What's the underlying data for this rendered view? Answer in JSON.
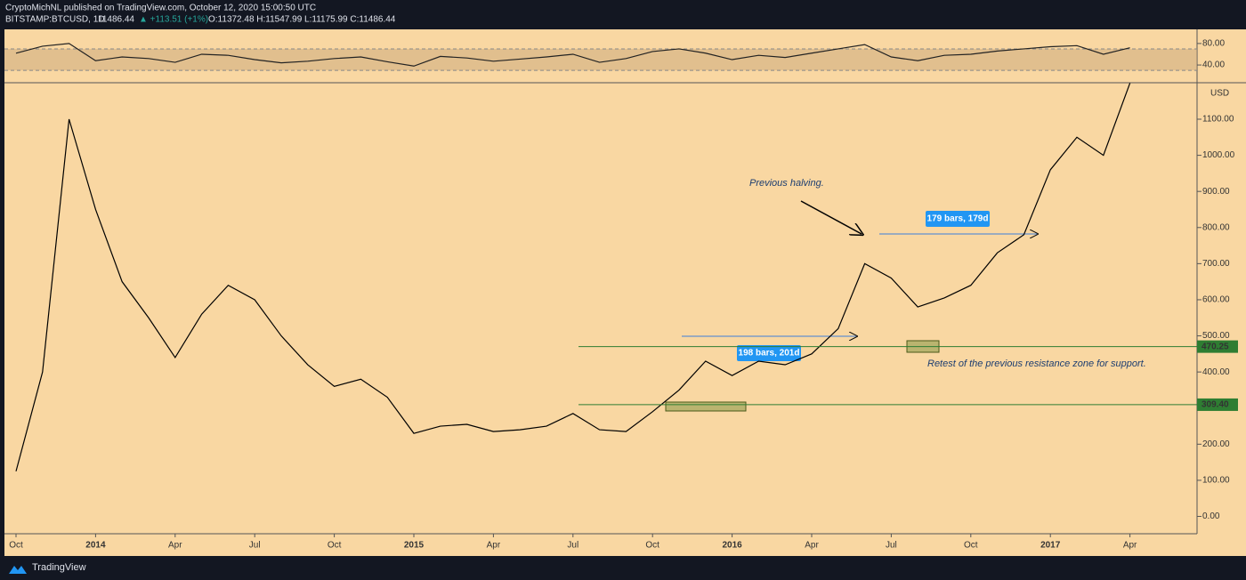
{
  "header": {
    "publisher": "CryptoMichNL published on TradingView.com, October 12, 2020 15:00:50 UTC",
    "symbol": "BITSTAMP:BTCUSD, 1D",
    "last": "11486.44",
    "change": "▲ +113.51 (+1%)",
    "ohlc": "O:11372.48 H:11547.99 L:11175.99 C:11486.44"
  },
  "chart_data": [
    {
      "type": "line",
      "currency": "USD",
      "color": "#000000",
      "categories": [
        "Oct",
        null,
        null,
        "2014",
        null,
        null,
        "Apr",
        null,
        null,
        "Jul",
        null,
        null,
        "Oct",
        null,
        null,
        "2015",
        null,
        null,
        "Apr",
        null,
        null,
        "Jul",
        null,
        null,
        "Oct",
        null,
        null,
        "2016",
        null,
        null,
        "Apr",
        null,
        null,
        "Jul",
        null,
        null,
        "Oct",
        null,
        null,
        "2017",
        null,
        null,
        "Apr"
      ],
      "values": [
        125,
        400,
        1100,
        850,
        650,
        550,
        440,
        560,
        640,
        600,
        500,
        420,
        360,
        380,
        330,
        230,
        250,
        255,
        235,
        240,
        250,
        285,
        240,
        235,
        290,
        350,
        430,
        390,
        430,
        420,
        450,
        520,
        700,
        660,
        580,
        605,
        640,
        730,
        780,
        960,
        1050,
        1000,
        1200
      ],
      "ylim": [
        -48,
        1201
      ],
      "yticks": [
        {
          "value": 0,
          "label": "0.00"
        },
        {
          "value": 100,
          "label": "100.00"
        },
        {
          "value": 200,
          "label": "200.00"
        },
        {
          "value": 300,
          "label": "300.00"
        },
        {
          "value": 400,
          "label": "400.00"
        },
        {
          "value": 500,
          "label": "500.00"
        },
        {
          "value": 600,
          "label": "600.00"
        },
        {
          "value": 700,
          "label": "700.00"
        },
        {
          "value": 800,
          "label": "800.00"
        },
        {
          "value": 900,
          "label": "900.00"
        },
        {
          "value": 1000,
          "label": "1000.00"
        },
        {
          "value": 1100,
          "label": "1100.00"
        }
      ],
      "levels": [
        470.25,
        {
          "value": 309.4,
          "label": "309.40"
        }
      ],
      "level_color": "#2e7d32",
      "measurements": [
        "198 bars, 201d",
        "179 bars, 179d"
      ],
      "annotations": [
        "Previous halving.",
        "Retest of the previous resistance zone for support."
      ]
    },
    {
      "type": "line",
      "color": "#222222",
      "values": [
        62,
        75,
        80,
        48,
        55,
        52,
        45,
        60,
        58,
        50,
        44,
        47,
        52,
        55,
        46,
        38,
        56,
        53,
        47,
        51,
        55,
        60,
        45,
        52,
        65,
        70,
        62,
        50,
        58,
        54,
        62,
        70,
        78,
        55,
        48,
        58,
        60,
        66,
        70,
        74,
        76,
        60,
        72
      ],
      "ylim": [
        7,
        103
      ],
      "band": [
        30,
        70
      ],
      "yticks": [
        {
          "value": 40,
          "label": "40.00"
        },
        {
          "value": 80,
          "label": "80.00"
        }
      ]
    }
  ],
  "footer": {
    "brand": "TradingView"
  }
}
